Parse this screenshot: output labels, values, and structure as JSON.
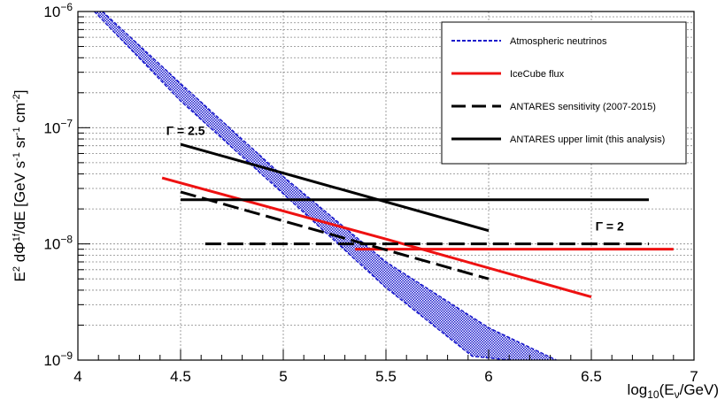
{
  "chart_data": {
    "type": "line",
    "xlabel": "log₁₀(Eν/GeV)",
    "ylabel": "E² dΦ¹ᶠ/dE [GeV s⁻¹ sr⁻¹ cm⁻²]",
    "xlim": [
      4,
      7
    ],
    "ylim": [
      1e-09,
      1e-06
    ],
    "yscale": "log",
    "grid": true,
    "legend_position": "top-right",
    "x_ticks": [
      {
        "value": 4,
        "label": "4"
      },
      {
        "value": 4.5,
        "label": "4.5"
      },
      {
        "value": 5,
        "label": "5"
      },
      {
        "value": 5.5,
        "label": "5.5"
      },
      {
        "value": 6,
        "label": "6"
      },
      {
        "value": 6.5,
        "label": "6.5"
      },
      {
        "value": 7,
        "label": "7"
      }
    ],
    "y_ticks": [
      {
        "value": 1e-09,
        "base": "10",
        "exp": "−9"
      },
      {
        "value": 1e-08,
        "base": "10",
        "exp": "−8"
      },
      {
        "value": 1e-07,
        "base": "10",
        "exp": "−7"
      },
      {
        "value": 1e-06,
        "base": "10",
        "exp": "−6"
      }
    ],
    "series": [
      {
        "name": "Atmospheric neutrinos",
        "style": "band",
        "color": "#1a1acc",
        "x": [
          4.12,
          4.5,
          5.0,
          5.5,
          6.0,
          6.33
        ],
        "y_upper": [
          1e-06,
          2.4e-07,
          3.8e-08,
          7e-09,
          1.9e-09,
          1e-09
        ],
        "y_lower": [
          1e-06,
          1.7e-07,
          2.7e-08,
          4.2e-09,
          1.08e-09,
          1e-09
        ],
        "y_lower_x": [
          4.08,
          4.5,
          5.0,
          5.5,
          5.92,
          6.1
        ]
      },
      {
        "name": "IceCube flux",
        "style": "solid",
        "color": "#ee1111",
        "x": [
          4.41,
          5.5,
          6.5
        ],
        "y": [
          3.7e-08,
          1.1e-08,
          3.5e-09
        ]
      },
      {
        "name": "IceCube flux",
        "style": "solid",
        "color": "#ee1111",
        "x": [
          5.35,
          6.9
        ],
        "y": [
          9e-09,
          9e-09
        ]
      },
      {
        "name": "ANTARES sensitivity (2007-2015)",
        "style": "dashed",
        "color": "#000000",
        "x": [
          4.5,
          6.0
        ],
        "y": [
          2.8e-08,
          5e-09
        ]
      },
      {
        "name": "ANTARES sensitivity (2007-2015)",
        "style": "dashed",
        "color": "#000000",
        "x": [
          4.62,
          6.78
        ],
        "y": [
          1e-08,
          1e-08
        ]
      },
      {
        "name": "ANTARES upper limit (this analysis)",
        "style": "solid",
        "color": "#000000",
        "x": [
          4.5,
          6.0
        ],
        "y": [
          7.2e-08,
          1.3e-08
        ]
      },
      {
        "name": "ANTARES upper limit (this analysis)",
        "style": "solid",
        "color": "#000000",
        "x": [
          4.5,
          6.78
        ],
        "y": [
          2.4e-08,
          2.4e-08
        ]
      }
    ],
    "legend": [
      {
        "label": "Atmospheric neutrinos",
        "style": "dotted",
        "color": "#1a1acc"
      },
      {
        "label": "IceCube flux",
        "style": "solid",
        "color": "#ee1111"
      },
      {
        "label": "ANTARES sensitivity (2007-2015)",
        "style": "dashed",
        "color": "#000000"
      },
      {
        "label": "ANTARES upper limit (this analysis)",
        "style": "solid",
        "color": "#000000"
      }
    ],
    "annotations": [
      {
        "text": "Γ = 2.5",
        "x": 4.43,
        "y": 8.7e-08
      },
      {
        "text": "Γ = 2",
        "x": 6.52,
        "y": 1.3e-08
      }
    ]
  }
}
